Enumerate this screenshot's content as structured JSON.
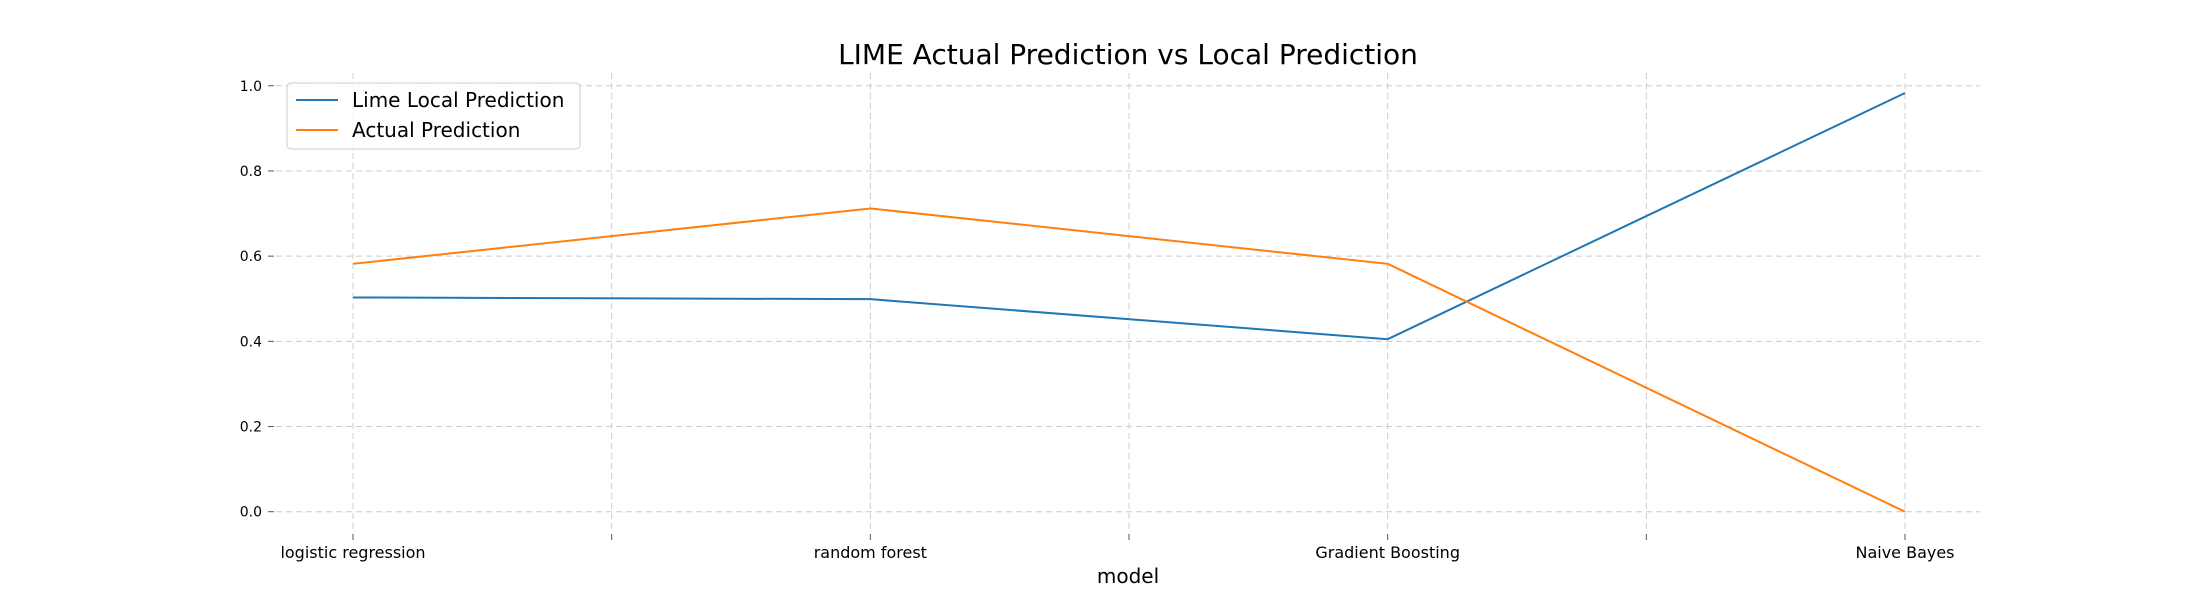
{
  "chart_data": {
    "type": "line",
    "title": "LIME Actual Prediction vs Local Prediction",
    "xlabel": "model",
    "ylabel": "",
    "categories": [
      "logistic regression",
      "random forest",
      "Gradient Boosting",
      "Naive Bayes"
    ],
    "ylim": [
      -0.05,
      1.03
    ],
    "yticks": [
      "0.0",
      "0.2",
      "0.4",
      "0.6",
      "0.8",
      "1.0"
    ],
    "grid": true,
    "grid_style": "dashed",
    "legend_position": "upper-left",
    "series": [
      {
        "name": "Lime Local Prediction",
        "color": "#1f77b4",
        "values": [
          0.503,
          0.499,
          0.405,
          0.983
        ]
      },
      {
        "name": "Actual Prediction",
        "color": "#ff7f0e",
        "values": [
          0.582,
          0.712,
          0.582,
          0.0
        ]
      }
    ]
  }
}
